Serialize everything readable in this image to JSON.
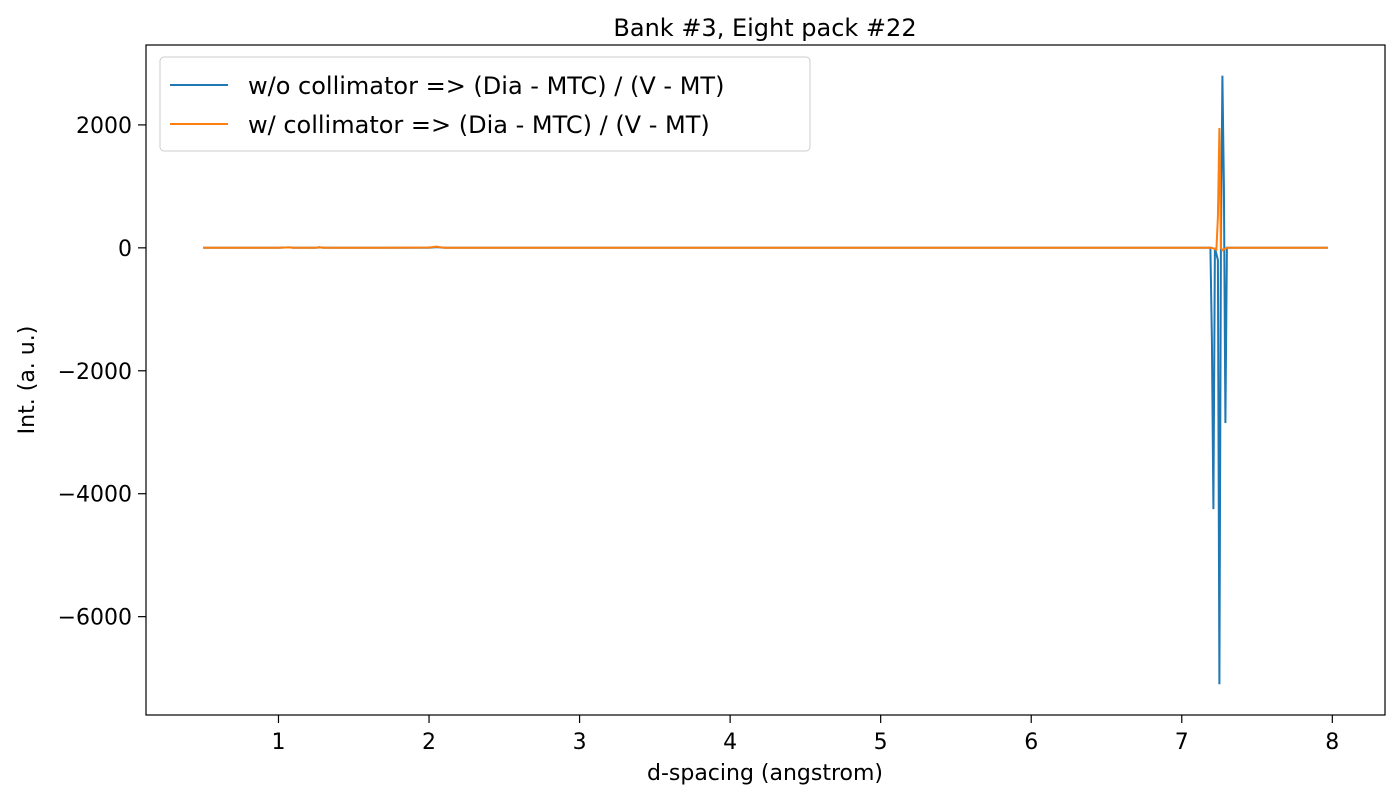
{
  "chart_data": {
    "type": "line",
    "title": "Bank #3, Eight pack #22",
    "xlabel": "d-spacing (angstrom)",
    "ylabel": "Int. (a. u.)",
    "xlim": [
      0.12,
      8.35
    ],
    "ylim": [
      -7600,
      3300
    ],
    "xticks": [
      1,
      2,
      3,
      4,
      5,
      6,
      7,
      8
    ],
    "xtick_labels": [
      "1",
      "2",
      "3",
      "4",
      "5",
      "6",
      "7",
      "8"
    ],
    "yticks": [
      2000,
      0,
      -2000,
      -4000,
      -6000
    ],
    "ytick_labels": [
      "2000",
      "0",
      "−2000",
      "−4000",
      "−6000"
    ],
    "grid": false,
    "legend": "top-left",
    "series": [
      {
        "name": "w/o collimator => (Dia - MTC) / (V - MT)",
        "color": "#1f77b4",
        "x": [
          0.5,
          0.8,
          1.0,
          1.07,
          1.1,
          1.25,
          1.27,
          1.3,
          1.6,
          2.0,
          2.05,
          2.1,
          3.0,
          4.0,
          5.0,
          6.0,
          7.0,
          7.19,
          7.2,
          7.21,
          7.22,
          7.24,
          7.25,
          7.26,
          7.27,
          7.28,
          7.29,
          7.3,
          7.35,
          7.6,
          7.8,
          7.97
        ],
        "y": [
          0,
          0,
          2,
          8,
          0,
          0,
          8,
          0,
          0,
          0,
          12,
          0,
          0,
          0,
          0,
          0,
          0,
          0,
          -1500,
          -4250,
          0,
          -200,
          -7100,
          0,
          2800,
          1000,
          -2850,
          0,
          0,
          0,
          0,
          0
        ]
      },
      {
        "name": "w/ collimator => (Dia - MTC) / (V - MT)",
        "color": "#ff7f0e",
        "x": [
          0.5,
          0.8,
          1.0,
          1.07,
          1.1,
          1.25,
          1.27,
          1.3,
          1.6,
          2.0,
          2.05,
          2.1,
          3.0,
          4.0,
          5.0,
          6.0,
          7.0,
          7.2,
          7.23,
          7.24,
          7.25,
          7.26,
          7.27,
          7.3,
          7.6,
          7.8,
          7.97
        ],
        "y": [
          0,
          0,
          2,
          8,
          0,
          0,
          10,
          0,
          0,
          5,
          20,
          0,
          0,
          0,
          0,
          0,
          0,
          0,
          -30,
          500,
          1950,
          0,
          -40,
          0,
          0,
          0,
          0
        ]
      }
    ]
  }
}
